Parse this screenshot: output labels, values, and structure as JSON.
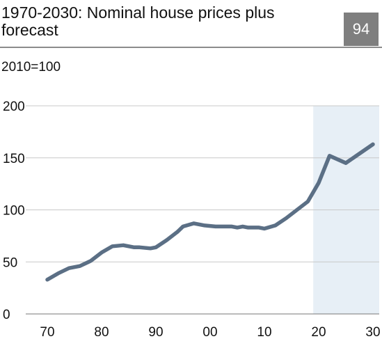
{
  "header": {
    "title": "1970-2030: Nominal house prices plus forecast",
    "badge": "94",
    "unit_label": "2010=100"
  },
  "colors": {
    "line": "#5b6f85",
    "forecast_band": "#e7eff6",
    "gridline": "#c8c8c8",
    "badge_bg": "#7f7f7f"
  },
  "chart_data": {
    "type": "line",
    "title": "1970-2030: Nominal house prices plus forecast",
    "ylabel": "2010=100",
    "xlabel": "",
    "ylim": [
      0,
      200
    ],
    "xlim": [
      1970,
      2030
    ],
    "y_ticks": [
      "0",
      "50",
      "100",
      "150",
      "200"
    ],
    "x_ticks": [
      "70",
      "80",
      "90",
      "00",
      "10",
      "20",
      "30"
    ],
    "grid": true,
    "shaded_forecast_range": [
      2019,
      2030
    ],
    "series": [
      {
        "x": [
          1970,
          1972,
          1974,
          1976,
          1978,
          1980,
          1982,
          1984,
          1986,
          1987,
          1989,
          1990,
          1992,
          1994,
          1995,
          1997,
          1999,
          2001,
          2002,
          2003,
          2004,
          2005,
          2006,
          2007,
          2009,
          2010,
          2012,
          2014,
          2015,
          2016,
          2018,
          2020,
          2022,
          2025,
          2030
        ],
        "y": [
          33,
          39,
          44,
          46,
          51,
          59,
          65,
          66,
          64,
          64,
          63,
          64,
          71,
          79,
          84,
          87,
          85,
          84,
          84,
          84,
          84,
          83,
          84,
          83,
          83,
          82,
          85,
          92,
          96,
          100,
          108,
          126,
          152,
          145,
          163
        ]
      }
    ]
  }
}
